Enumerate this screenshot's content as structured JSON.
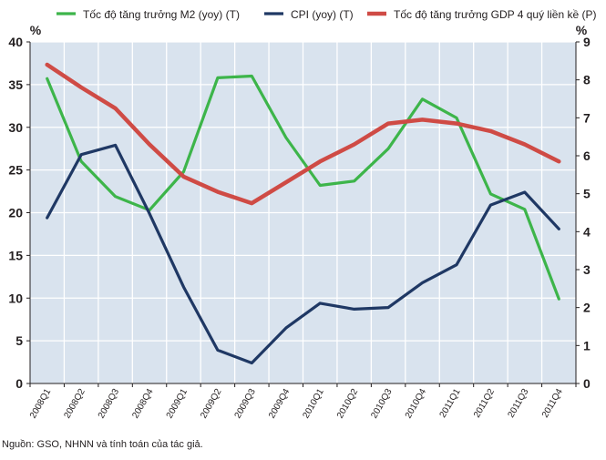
{
  "chart_data": {
    "type": "line",
    "categories": [
      "2008Q1",
      "2008Q2",
      "2008Q3",
      "2008Q4",
      "2009Q1",
      "2009Q2",
      "2009Q3",
      "2009Q4",
      "2010Q1",
      "2010Q2",
      "2010Q3",
      "2010Q4",
      "2011Q1",
      "2011Q2",
      "2011Q3",
      "2011Q4"
    ],
    "left_axis": {
      "unit": "%",
      "ylim": [
        0,
        40
      ],
      "ticks": [
        0,
        5,
        10,
        15,
        20,
        25,
        30,
        35,
        40
      ]
    },
    "right_axis": {
      "unit": "%",
      "ylim": [
        0,
        9
      ],
      "ticks": [
        0,
        1,
        2,
        3,
        4,
        5,
        6,
        7,
        8,
        9
      ]
    },
    "grid": true,
    "legend_position": "top",
    "series": [
      {
        "name": "Tốc độ tăng trưởng M2 (yoy) (T)",
        "axis": "left",
        "color": "#3db54a",
        "values": [
          35.7,
          26.0,
          21.9,
          20.3,
          24.8,
          35.8,
          36.0,
          28.8,
          23.2,
          23.7,
          27.5,
          33.3,
          31.1,
          22.2,
          20.4,
          9.9
        ]
      },
      {
        "name": "CPI (yoy) (T)",
        "axis": "left",
        "color": "#1f3864",
        "values": [
          19.4,
          26.8,
          27.9,
          19.9,
          11.3,
          3.9,
          2.4,
          6.5,
          9.4,
          8.7,
          8.9,
          11.8,
          13.9,
          20.9,
          22.4,
          18.1
        ]
      },
      {
        "name": "Tốc độ tăng trưởng GDP 4 quý liền kề (P)",
        "axis": "right",
        "color": "#cf4b45",
        "values": [
          8.4,
          7.8,
          7.25,
          6.3,
          5.45,
          5.05,
          4.75,
          5.3,
          5.85,
          6.3,
          6.85,
          6.95,
          6.85,
          6.65,
          6.3,
          5.85
        ]
      }
    ]
  },
  "source_note": "Nguồn: GSO, NHNN và tính toán của tác giả."
}
